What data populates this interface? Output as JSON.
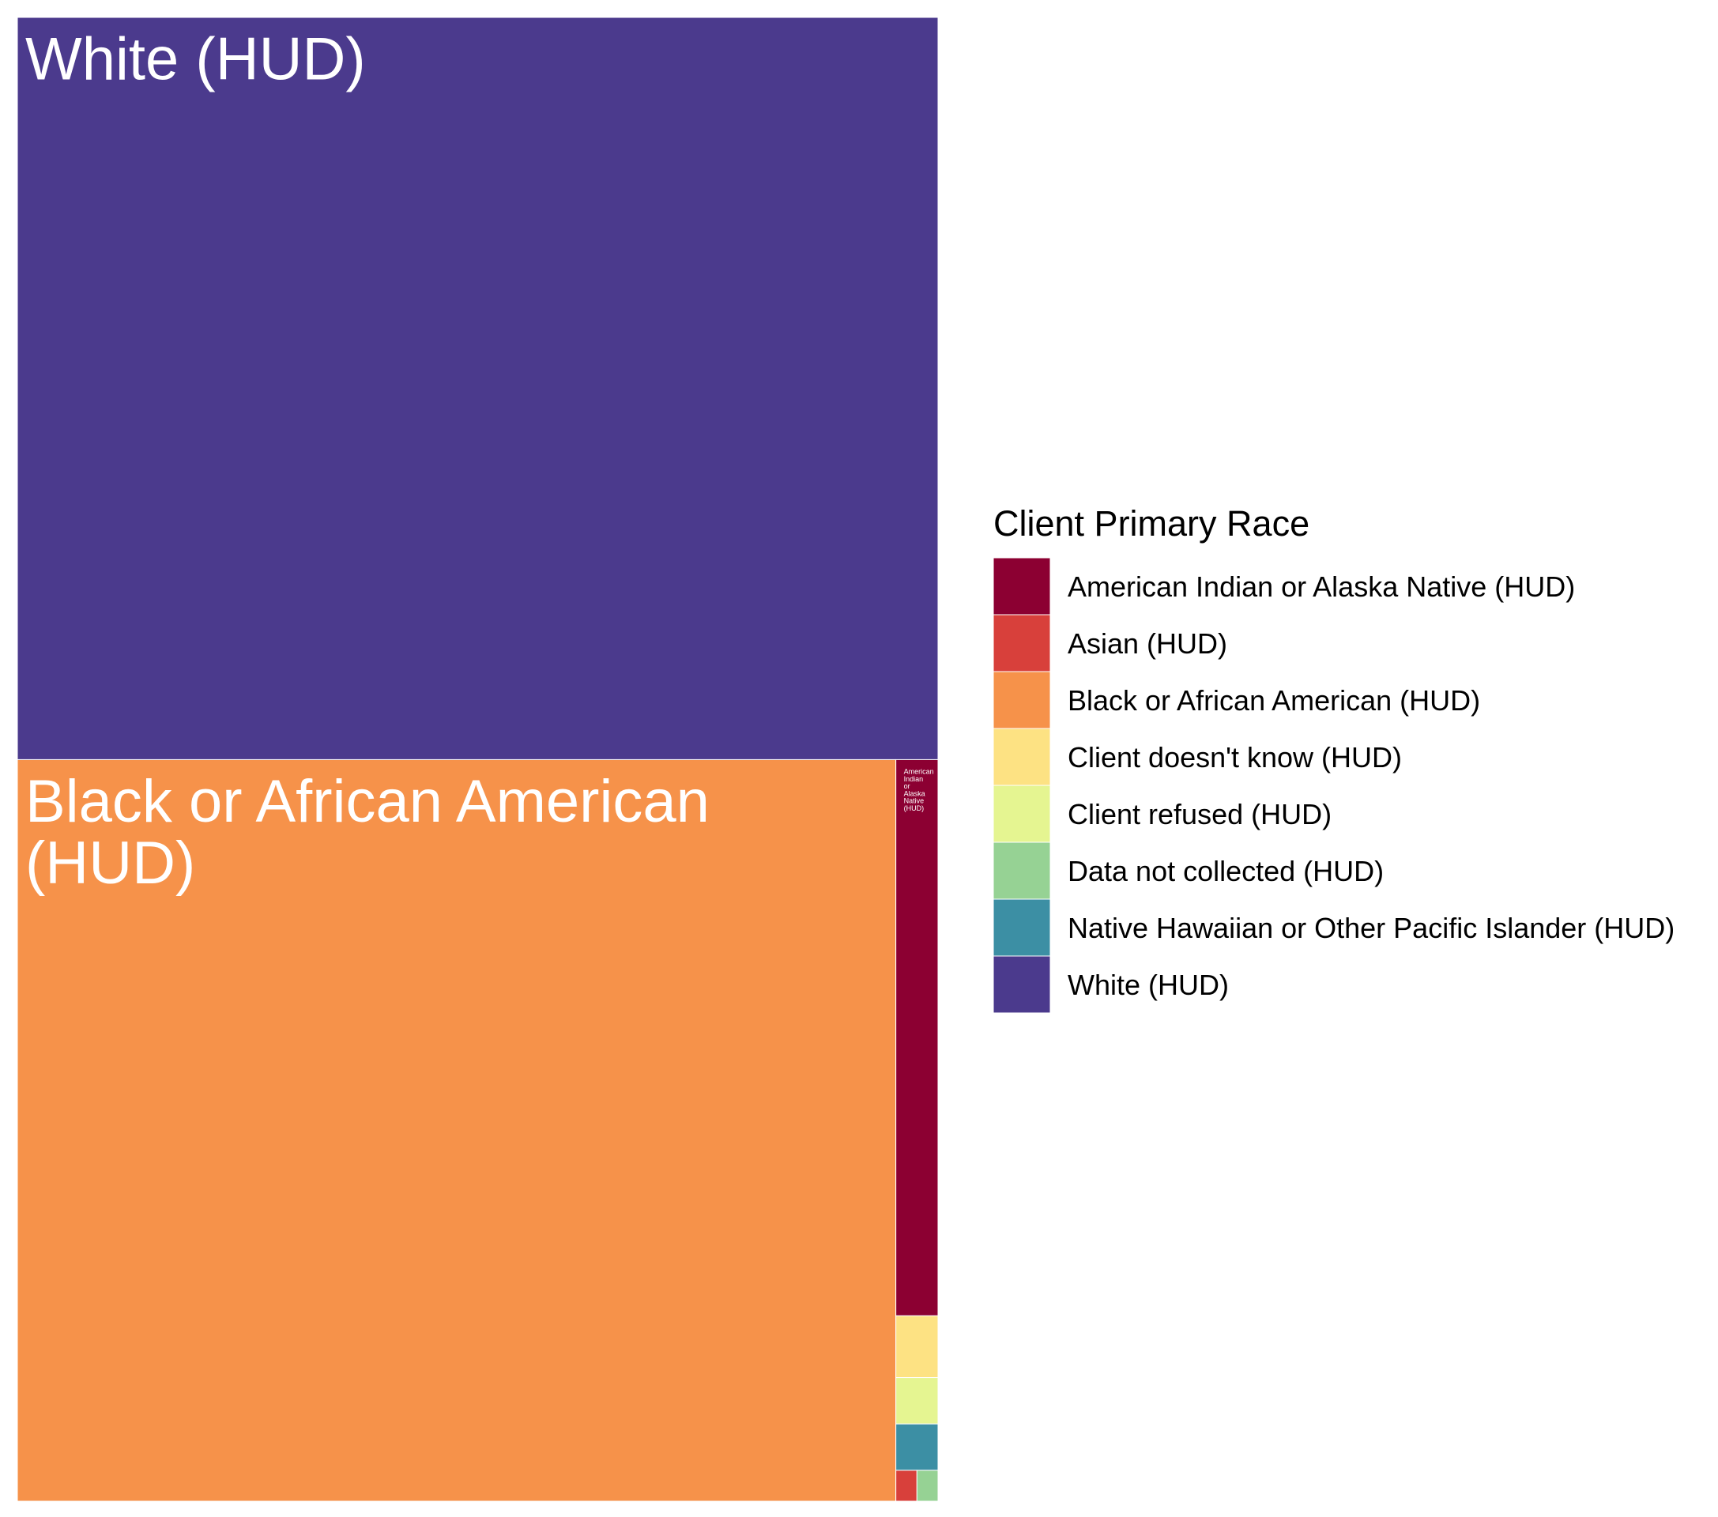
{
  "chart_data": {
    "type": "treemap",
    "title": "",
    "legend": {
      "title": "Client Primary Race",
      "placement": "right"
    },
    "categories": [
      "American Indian or Alaska Native (HUD)",
      "Asian (HUD)",
      "Black or African American (HUD)",
      "Client doesn't know (HUD)",
      "Client refused (HUD)",
      "Data not collected (HUD)",
      "Native Hawaiian or Other Pacific Islander (HUD)",
      "White (HUD)"
    ],
    "values": [
      36,
      1,
      1000,
      4,
      3,
      1,
      3,
      1049
    ],
    "colors": [
      "#8c0032",
      "#d8403b",
      "#f6924a",
      "#fde283",
      "#e5f591",
      "#96d294",
      "#3c8fa4",
      "#4b3a8d"
    ],
    "labels_shown": [
      "Black or African American (HUD)",
      "White (HUD)",
      "American Indian or Alaska Native (HUD)"
    ]
  }
}
